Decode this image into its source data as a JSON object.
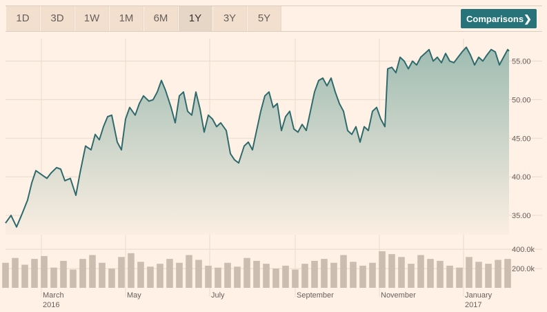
{
  "toolbar": {
    "ranges": [
      "1D",
      "3D",
      "1W",
      "1M",
      "6M",
      "1Y",
      "3Y",
      "5Y"
    ],
    "active_range": "1Y",
    "comparisons_label": "Comparisons",
    "chevron_icon": "chevron-right-icon"
  },
  "colors": {
    "background": "#fff1e5",
    "line": "#2e6a6c",
    "area_top": "#9fbcb2",
    "area_bottom": "#fbeee2",
    "volume": "#cbbdb0",
    "active_tab": "#e6d6c5",
    "button": "#26747a"
  },
  "chart_data": [
    {
      "type": "area",
      "title": "",
      "xlabel": "",
      "ylabel": "",
      "xlim": [
        "2016-02-04",
        "2017-02-03"
      ],
      "ylim": [
        32.5,
        58
      ],
      "y_ticks": [
        "35.00",
        "40.00",
        "45.00",
        "50.00",
        "55.00"
      ],
      "y_tick_values": [
        35,
        40,
        45,
        50,
        55
      ],
      "x_ticks": [
        {
          "date": "2016-03-01",
          "label": "March",
          "sublabel": "2016"
        },
        {
          "date": "2016-05-01",
          "label": "May",
          "sublabel": ""
        },
        {
          "date": "2016-07-01",
          "label": "July",
          "sublabel": ""
        },
        {
          "date": "2016-09-01",
          "label": "September",
          "sublabel": ""
        },
        {
          "date": "2016-11-01",
          "label": "November",
          "sublabel": ""
        },
        {
          "date": "2017-01-01",
          "label": "January",
          "sublabel": "2017"
        }
      ],
      "grid": true,
      "legend": "none",
      "series": [
        {
          "points": [
            [
              "2016-02-04",
              34.0
            ],
            [
              "2016-02-08",
              35.0
            ],
            [
              "2016-02-12",
              33.5
            ],
            [
              "2016-02-16",
              35.2
            ],
            [
              "2016-02-20",
              37.0
            ],
            [
              "2016-02-23",
              39.2
            ],
            [
              "2016-02-26",
              40.8
            ],
            [
              "2016-03-01",
              40.3
            ],
            [
              "2016-03-05",
              39.8
            ],
            [
              "2016-03-08",
              40.5
            ],
            [
              "2016-03-12",
              41.2
            ],
            [
              "2016-03-15",
              41.0
            ],
            [
              "2016-03-18",
              39.5
            ],
            [
              "2016-03-22",
              39.8
            ],
            [
              "2016-03-26",
              37.6
            ],
            [
              "2016-03-29",
              40.5
            ],
            [
              "2016-04-02",
              44.0
            ],
            [
              "2016-04-06",
              43.5
            ],
            [
              "2016-04-09",
              45.5
            ],
            [
              "2016-04-12",
              44.8
            ],
            [
              "2016-04-15",
              46.5
            ],
            [
              "2016-04-18",
              47.8
            ],
            [
              "2016-04-21",
              48.0
            ],
            [
              "2016-04-25",
              44.5
            ],
            [
              "2016-04-28",
              43.5
            ],
            [
              "2016-05-01",
              47.5
            ],
            [
              "2016-05-04",
              49.0
            ],
            [
              "2016-05-08",
              48.0
            ],
            [
              "2016-05-11",
              49.5
            ],
            [
              "2016-05-14",
              50.5
            ],
            [
              "2016-05-18",
              49.8
            ],
            [
              "2016-05-21",
              50.0
            ],
            [
              "2016-05-24",
              51.0
            ],
            [
              "2016-05-27",
              52.5
            ],
            [
              "2016-05-30",
              51.2
            ],
            [
              "2016-06-03",
              49.0
            ],
            [
              "2016-06-06",
              47.0
            ],
            [
              "2016-06-09",
              50.5
            ],
            [
              "2016-06-12",
              51.0
            ],
            [
              "2016-06-15",
              48.5
            ],
            [
              "2016-06-18",
              48.0
            ],
            [
              "2016-06-21",
              51.0
            ],
            [
              "2016-06-24",
              48.8
            ],
            [
              "2016-06-27",
              45.8
            ],
            [
              "2016-06-30",
              48.0
            ],
            [
              "2016-07-03",
              47.5
            ],
            [
              "2016-07-06",
              46.5
            ],
            [
              "2016-07-09",
              47.0
            ],
            [
              "2016-07-13",
              46.0
            ],
            [
              "2016-07-16",
              43.0
            ],
            [
              "2016-07-19",
              42.2
            ],
            [
              "2016-07-22",
              41.8
            ],
            [
              "2016-07-26",
              44.0
            ],
            [
              "2016-07-29",
              44.5
            ],
            [
              "2016-08-01",
              43.5
            ],
            [
              "2016-08-04",
              46.0
            ],
            [
              "2016-08-07",
              48.5
            ],
            [
              "2016-08-10",
              50.5
            ],
            [
              "2016-08-13",
              51.0
            ],
            [
              "2016-08-16",
              49.0
            ],
            [
              "2016-08-19",
              49.5
            ],
            [
              "2016-08-22",
              46.0
            ],
            [
              "2016-08-25",
              47.8
            ],
            [
              "2016-08-28",
              48.5
            ],
            [
              "2016-08-31",
              46.2
            ],
            [
              "2016-09-03",
              45.8
            ],
            [
              "2016-09-06",
              46.8
            ],
            [
              "2016-09-09",
              46.0
            ],
            [
              "2016-09-12",
              48.5
            ],
            [
              "2016-09-15",
              51.0
            ],
            [
              "2016-09-18",
              52.5
            ],
            [
              "2016-09-21",
              52.8
            ],
            [
              "2016-09-24",
              51.8
            ],
            [
              "2016-09-27",
              52.8
            ],
            [
              "2016-09-30",
              51.0
            ],
            [
              "2016-10-03",
              49.5
            ],
            [
              "2016-10-06",
              48.5
            ],
            [
              "2016-10-09",
              46.0
            ],
            [
              "2016-10-12",
              45.5
            ],
            [
              "2016-10-15",
              46.5
            ],
            [
              "2016-10-18",
              44.5
            ],
            [
              "2016-10-21",
              46.5
            ],
            [
              "2016-10-24",
              46.0
            ],
            [
              "2016-10-27",
              48.5
            ],
            [
              "2016-10-30",
              49.0
            ],
            [
              "2016-11-02",
              47.5
            ],
            [
              "2016-11-05",
              46.5
            ],
            [
              "2016-11-07",
              54.0
            ],
            [
              "2016-11-10",
              54.2
            ],
            [
              "2016-11-13",
              53.5
            ],
            [
              "2016-11-16",
              55.5
            ],
            [
              "2016-11-19",
              55.0
            ],
            [
              "2016-11-22",
              54.0
            ],
            [
              "2016-11-25",
              55.0
            ],
            [
              "2016-11-28",
              54.5
            ],
            [
              "2016-12-01",
              55.5
            ],
            [
              "2016-12-04",
              56.0
            ],
            [
              "2016-12-07",
              56.5
            ],
            [
              "2016-12-10",
              55.0
            ],
            [
              "2016-12-13",
              55.5
            ],
            [
              "2016-12-16",
              54.8
            ],
            [
              "2016-12-19",
              56.0
            ],
            [
              "2016-12-22",
              55.0
            ],
            [
              "2016-12-25",
              54.8
            ],
            [
              "2016-12-28",
              55.5
            ],
            [
              "2016-12-31",
              56.2
            ],
            [
              "2017-01-03",
              56.8
            ],
            [
              "2017-01-06",
              55.8
            ],
            [
              "2017-01-09",
              54.5
            ],
            [
              "2017-01-12",
              55.5
            ],
            [
              "2017-01-15",
              55.0
            ],
            [
              "2017-01-18",
              55.8
            ],
            [
              "2017-01-21",
              56.5
            ],
            [
              "2017-01-24",
              56.2
            ],
            [
              "2017-01-27",
              54.5
            ],
            [
              "2017-01-30",
              55.5
            ],
            [
              "2017-02-02",
              56.5
            ],
            [
              "2017-02-03",
              56.3
            ]
          ]
        }
      ]
    },
    {
      "type": "bar",
      "title": "",
      "ylim": [
        0,
        480000
      ],
      "y_ticks": [
        "200.0k",
        "400.0k"
      ],
      "y_tick_values": [
        200000,
        400000
      ],
      "legend": "none",
      "volume_weekly": [
        {
          "week": "2016-02-04",
          "value": 260000
        },
        {
          "week": "2016-02-11",
          "value": 310000
        },
        {
          "week": "2016-02-18",
          "value": 240000
        },
        {
          "week": "2016-02-25",
          "value": 300000
        },
        {
          "week": "2016-03-03",
          "value": 330000
        },
        {
          "week": "2016-03-10",
          "value": 210000
        },
        {
          "week": "2016-03-17",
          "value": 280000
        },
        {
          "week": "2016-03-24",
          "value": 190000
        },
        {
          "week": "2016-03-31",
          "value": 300000
        },
        {
          "week": "2016-04-07",
          "value": 340000
        },
        {
          "week": "2016-04-14",
          "value": 260000
        },
        {
          "week": "2016-04-21",
          "value": 200000
        },
        {
          "week": "2016-04-28",
          "value": 320000
        },
        {
          "week": "2016-05-05",
          "value": 360000
        },
        {
          "week": "2016-05-12",
          "value": 270000
        },
        {
          "week": "2016-05-19",
          "value": 220000
        },
        {
          "week": "2016-05-26",
          "value": 250000
        },
        {
          "week": "2016-06-02",
          "value": 300000
        },
        {
          "week": "2016-06-09",
          "value": 260000
        },
        {
          "week": "2016-06-16",
          "value": 340000
        },
        {
          "week": "2016-06-23",
          "value": 290000
        },
        {
          "week": "2016-06-30",
          "value": 230000
        },
        {
          "week": "2016-07-07",
          "value": 210000
        },
        {
          "week": "2016-07-14",
          "value": 260000
        },
        {
          "week": "2016-07-21",
          "value": 220000
        },
        {
          "week": "2016-07-28",
          "value": 310000
        },
        {
          "week": "2016-08-04",
          "value": 280000
        },
        {
          "week": "2016-08-11",
          "value": 250000
        },
        {
          "week": "2016-08-18",
          "value": 200000
        },
        {
          "week": "2016-08-25",
          "value": 230000
        },
        {
          "week": "2016-09-01",
          "value": 190000
        },
        {
          "week": "2016-09-08",
          "value": 250000
        },
        {
          "week": "2016-09-15",
          "value": 280000
        },
        {
          "week": "2016-09-22",
          "value": 300000
        },
        {
          "week": "2016-09-29",
          "value": 260000
        },
        {
          "week": "2016-10-06",
          "value": 340000
        },
        {
          "week": "2016-10-13",
          "value": 270000
        },
        {
          "week": "2016-10-20",
          "value": 230000
        },
        {
          "week": "2016-10-27",
          "value": 260000
        },
        {
          "week": "2016-11-03",
          "value": 380000
        },
        {
          "week": "2016-11-10",
          "value": 350000
        },
        {
          "week": "2016-11-17",
          "value": 320000
        },
        {
          "week": "2016-11-24",
          "value": 250000
        },
        {
          "week": "2016-12-01",
          "value": 340000
        },
        {
          "week": "2016-12-08",
          "value": 300000
        },
        {
          "week": "2016-12-15",
          "value": 280000
        },
        {
          "week": "2016-12-22",
          "value": 230000
        },
        {
          "week": "2016-12-29",
          "value": 210000
        },
        {
          "week": "2017-01-05",
          "value": 320000
        },
        {
          "week": "2017-01-12",
          "value": 270000
        },
        {
          "week": "2017-01-19",
          "value": 250000
        },
        {
          "week": "2017-01-26",
          "value": 290000
        },
        {
          "week": "2017-02-02",
          "value": 300000
        }
      ]
    }
  ]
}
